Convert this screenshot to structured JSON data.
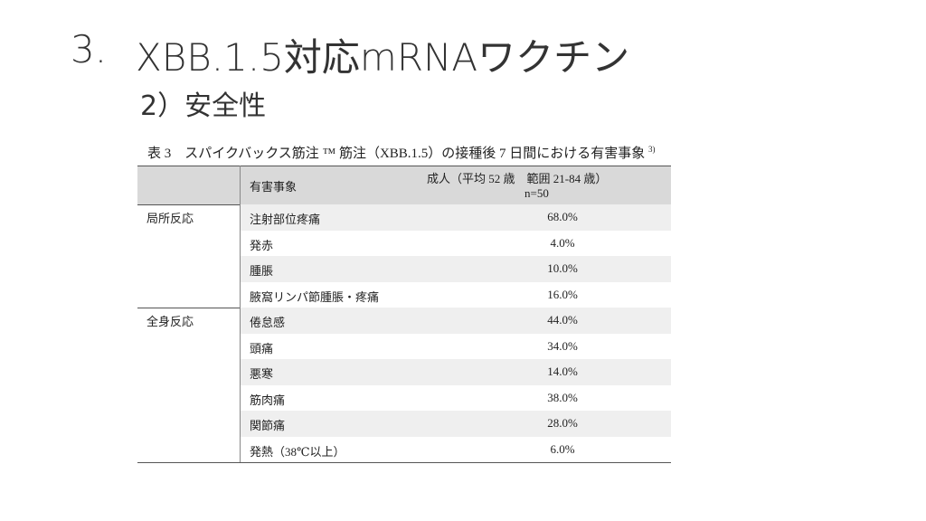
{
  "title": {
    "number": "3.",
    "text": "XBB.1.5対応mRNAワクチン"
  },
  "subtitle": "2）安全性",
  "table": {
    "caption": "表 3　スパイクバックス筋注 ™ 筋注（XBB.1.5）の接種後 7 日間における有害事象",
    "caption_ref": "3)",
    "header": {
      "event": "有害事象",
      "group_line1": "成人（平均 52 歳　範囲 21-84 歳）",
      "group_line2": "n=50"
    },
    "groups": [
      {
        "label": "局所反応",
        "rows": [
          [
            "注射部位疼痛",
            "68.0%"
          ],
          [
            "発赤",
            "4.0%"
          ],
          [
            "腫脹",
            "10.0%"
          ],
          [
            "腋窩リンパ節腫脹・疼痛",
            "16.0%"
          ]
        ]
      },
      {
        "label": "全身反応",
        "rows": [
          [
            "倦怠感",
            "44.0%"
          ],
          [
            "頭痛",
            "34.0%"
          ],
          [
            "悪寒",
            "14.0%"
          ],
          [
            "筋肉痛",
            "38.0%"
          ],
          [
            "関節痛",
            "28.0%"
          ],
          [
            "発熱（38℃以上）",
            "6.0%"
          ]
        ]
      }
    ]
  }
}
